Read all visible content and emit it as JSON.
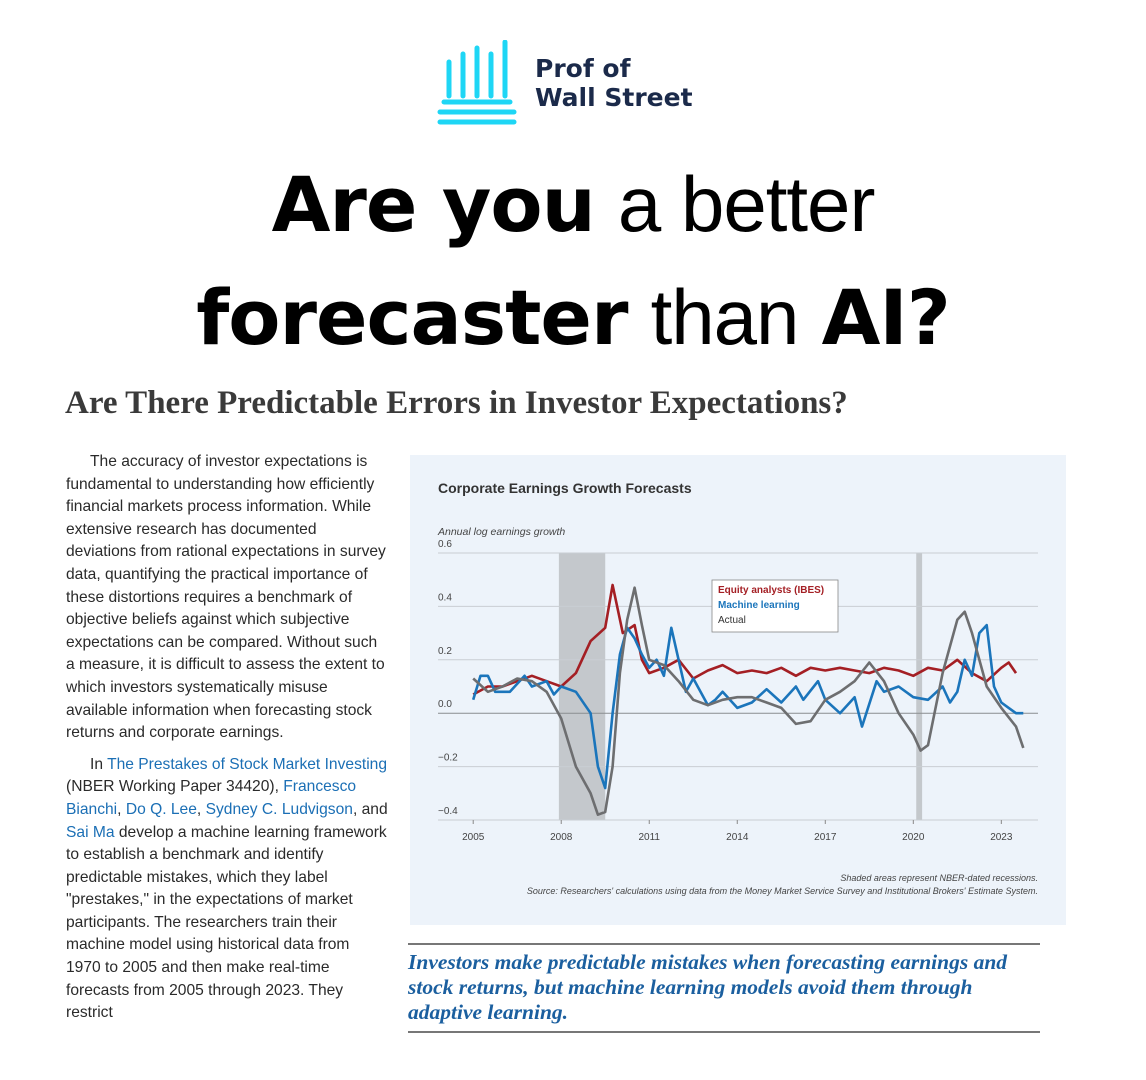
{
  "brand": {
    "line1": "Prof of",
    "line2": "Wall Street"
  },
  "headline": {
    "lines": [
      [
        {
          "text": "Are you",
          "bold": true
        },
        {
          "text": "a better",
          "bold": false
        }
      ],
      [
        {
          "text": "forecaster",
          "bold": true
        },
        {
          "text": "than",
          "bold": false
        },
        {
          "text": "AI?",
          "bold": true
        }
      ]
    ]
  },
  "article": {
    "title": "Are There Predictable Errors in Investor Expectations?",
    "paragraphs": [
      [
        {
          "text": "The accuracy of investor expectations is fundamental to understanding how efficiently financial markets process information. While extensive research has documented deviations from rational expectations in survey data, quantifying the practical importance of these distortions requires a benchmark of objective beliefs against which subjective expectations can be compared. Without such a measure, it is difficult to assess the extent to which investors systematically misuse available information when forecasting stock returns and corporate earnings.",
          "link": false
        }
      ],
      [
        {
          "text": "In ",
          "link": false
        },
        {
          "text": "The Prestakes of Stock Market Investing",
          "link": true
        },
        {
          "text": " (NBER Working Paper 34420), ",
          "link": false
        },
        {
          "text": "Francesco Bianchi",
          "link": true
        },
        {
          "text": ", ",
          "link": false
        },
        {
          "text": "Do Q. Lee",
          "link": true
        },
        {
          "text": ", ",
          "link": false
        },
        {
          "text": "Sydney C. Ludvigson",
          "link": true
        },
        {
          "text": ", and ",
          "link": false
        },
        {
          "text": "Sai Ma",
          "link": true
        },
        {
          "text": " develop a machine learning framework to establish a benchmark and identify predictable mistakes, which they label \"prestakes,\" in the expectations of market participants. The researchers train their machine model using historical data from 1970 to 2005 and then make real-time forecasts from 2005 through 2023. They restrict",
          "link": false
        }
      ]
    ],
    "pull_quote": "Investors make predictable mistakes when forecasting earnings and stock returns, but machine learning models avoid them through adaptive learning."
  },
  "chart_data": {
    "type": "line",
    "title": "Corporate Earnings Growth Forecasts",
    "y_label": "Annual log earnings growth",
    "xlim": [
      2003.8,
      2024.25
    ],
    "xticks": [
      2005,
      2008,
      2011,
      2014,
      2017,
      2020,
      2023
    ],
    "ylim": [
      -0.4,
      0.6
    ],
    "yticks": [
      0.6,
      0.4,
      0.2,
      {
        "value": 0,
        "label": "0.0"
      },
      {
        "value": -0.2,
        "label": "−0.2"
      },
      {
        "value": -0.4,
        "label": "−0.4"
      }
    ],
    "grid": true,
    "legend": "upper-center",
    "recessions": [
      [
        2007.92,
        2009.5
      ],
      [
        2020.1,
        2020.3
      ]
    ],
    "recession_color": "#c4c8cc",
    "series": [
      {
        "name": "Equity analysts (IBES)",
        "color": "#a41f24",
        "x": [
          2005,
          2005.5,
          2006,
          2006.5,
          2007,
          2007.5,
          2008,
          2008.5,
          2009,
          2009.5,
          2009.75,
          2010.1,
          2010.5,
          2010.75,
          2011,
          2011.5,
          2012,
          2012.5,
          2013,
          2013.5,
          2014,
          2014.5,
          2015,
          2015.5,
          2016,
          2016.5,
          2017,
          2017.5,
          2018,
          2018.5,
          2019,
          2019.5,
          2020,
          2020.5,
          2021,
          2021.5,
          2022,
          2022.5,
          2023,
          2023.25,
          2023.5
        ],
        "values": [
          0.07,
          0.1,
          0.1,
          0.12,
          0.14,
          0.12,
          0.1,
          0.15,
          0.27,
          0.32,
          0.48,
          0.3,
          0.33,
          0.2,
          0.15,
          0.17,
          0.2,
          0.13,
          0.16,
          0.18,
          0.15,
          0.16,
          0.15,
          0.17,
          0.14,
          0.17,
          0.16,
          0.17,
          0.16,
          0.15,
          0.17,
          0.16,
          0.14,
          0.17,
          0.16,
          0.2,
          0.15,
          0.12,
          0.17,
          0.19,
          0.15
        ]
      },
      {
        "name": "Machine learning",
        "color": "#1b75bb",
        "x": [
          2005,
          2005.25,
          2005.5,
          2005.75,
          2006.25,
          2006.75,
          2007,
          2007.5,
          2007.75,
          2008,
          2008.5,
          2009,
          2009.25,
          2009.5,
          2009.75,
          2010,
          2010.25,
          2010.5,
          2010.75,
          2011,
          2011.25,
          2011.5,
          2011.75,
          2012,
          2012.25,
          2012.5,
          2013,
          2013.25,
          2013.5,
          2014,
          2014.5,
          2015,
          2015.5,
          2016,
          2016.25,
          2016.75,
          2017,
          2017.5,
          2018,
          2018.25,
          2018.75,
          2019,
          2019.5,
          2020,
          2020.5,
          2021,
          2021.25,
          2021.5,
          2021.75,
          2022,
          2022.25,
          2022.5,
          2022.75,
          2023,
          2023.25,
          2023.5,
          2023.75
        ],
        "values": [
          0.05,
          0.14,
          0.14,
          0.08,
          0.08,
          0.14,
          0.1,
          0.12,
          0.07,
          0.1,
          0.08,
          0.0,
          -0.2,
          -0.28,
          0.0,
          0.22,
          0.32,
          0.28,
          0.22,
          0.17,
          0.2,
          0.14,
          0.32,
          0.2,
          0.08,
          0.13,
          0.03,
          0.05,
          0.08,
          0.02,
          0.04,
          0.09,
          0.04,
          0.1,
          0.05,
          0.12,
          0.05,
          0.0,
          0.06,
          -0.05,
          0.12,
          0.08,
          0.1,
          0.06,
          0.05,
          0.1,
          0.04,
          0.08,
          0.2,
          0.14,
          0.3,
          0.33,
          0.1,
          0.04,
          0.02,
          0.0,
          0.0
        ]
      },
      {
        "name": "Actual",
        "color": "#6d6e70",
        "x": [
          2005,
          2005.5,
          2006,
          2006.5,
          2007,
          2007.5,
          2008,
          2008.5,
          2009,
          2009.25,
          2009.5,
          2009.75,
          2010,
          2010.25,
          2010.5,
          2010.75,
          2011,
          2011.5,
          2012,
          2012.5,
          2013,
          2013.5,
          2014,
          2014.5,
          2015,
          2015.5,
          2016,
          2016.5,
          2017,
          2017.5,
          2018,
          2018.5,
          2019,
          2019.5,
          2020,
          2020.25,
          2020.5,
          2021,
          2021.5,
          2021.75,
          2022,
          2022.5,
          2023,
          2023.5,
          2023.75
        ],
        "values": [
          0.13,
          0.08,
          0.1,
          0.13,
          0.12,
          0.08,
          -0.02,
          -0.2,
          -0.3,
          -0.38,
          -0.37,
          -0.2,
          0.15,
          0.35,
          0.47,
          0.33,
          0.2,
          0.18,
          0.12,
          0.05,
          0.03,
          0.05,
          0.06,
          0.06,
          0.04,
          0.02,
          -0.04,
          -0.03,
          0.05,
          0.08,
          0.12,
          0.19,
          0.12,
          0.0,
          -0.08,
          -0.14,
          -0.12,
          0.15,
          0.35,
          0.38,
          0.3,
          0.1,
          0.02,
          -0.05,
          -0.13
        ]
      }
    ],
    "notes": [
      "Shaded areas represent NBER-dated recessions.",
      "Source: Researchers' calculations using data from the Money Market Service Survey and Institutional Brokers' Estimate System."
    ]
  }
}
